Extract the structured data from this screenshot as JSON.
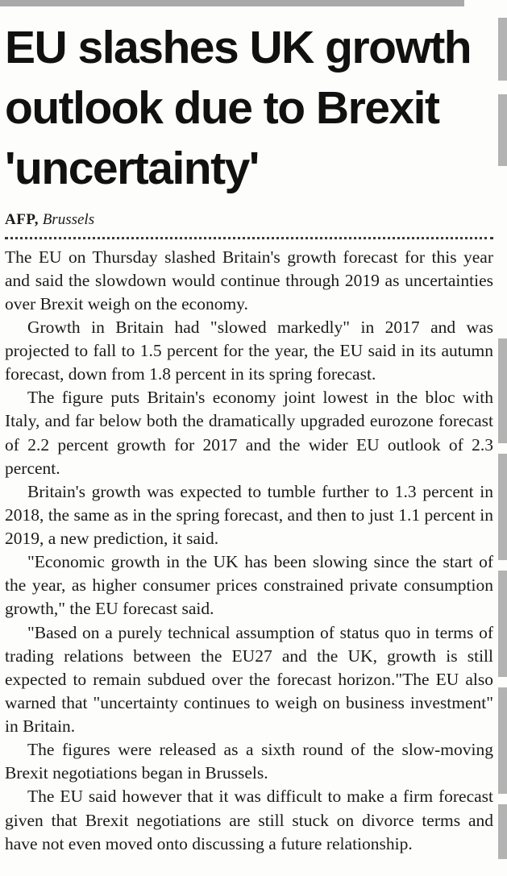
{
  "article": {
    "headline": "EU slashes UK growth outlook due to Brexit 'uncertainty'",
    "byline": {
      "agency": "AFP,",
      "location": "Brussels"
    },
    "paragraphs": [
      "The EU on Thursday slashed Britain's growth forecast for this year and said the slowdown would continue through 2019 as uncertainties over Brexit weigh on the economy.",
      "Growth in Britain had \"slowed markedly\" in 2017 and was projected to fall to 1.5 percent for the year, the EU said in its autumn forecast, down from 1.8 percent in its spring forecast.",
      "The figure puts Britain's economy joint lowest in the bloc with Italy, and far below both the dramatically upgraded eurozone forecast of 2.2 percent growth for 2017 and the wider EU outlook of 2.3 percent.",
      "Britain's growth was expected to tumble further to 1.3 percent in 2018, the same as in the spring forecast, and then to just 1.1 percent in 2019, a new prediction, it said.",
      "\"Economic growth in the UK has been slowing since the start of the year, as higher consumer prices constrained private consumption growth,\" the EU forecast said.",
      "\"Based on a purely technical assumption of status quo in terms of trading relations between the EU27 and the UK, growth is still expected to remain subdued over the forecast horizon.\"The EU also warned that \"uncertainty continues to weigh on business investment\" in Britain.",
      "The figures were released as a sixth round of the slow-moving Brexit negotiations began in Brussels.",
      "The EU said however that it was difficult to make a firm forecast given that Brexit negotiations are still stuck on divorce terms and have not even moved onto discussing a future relationship."
    ]
  },
  "colors": {
    "background": "#fdfdfb",
    "text": "#1b1b1b",
    "crop_artifact_gray": "#b3b3b3"
  }
}
